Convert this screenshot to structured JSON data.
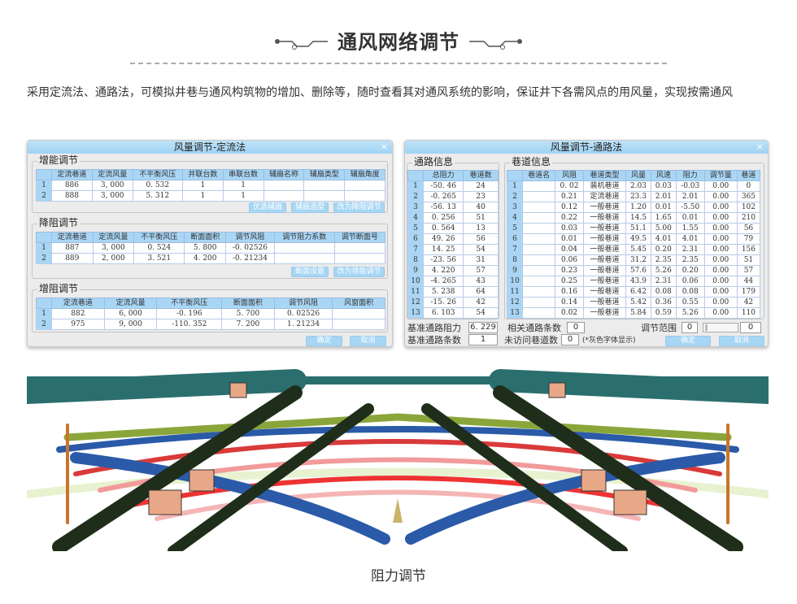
{
  "header": {
    "title": "通风网络调节"
  },
  "intro": "采用定流法、通路法，可模拟井巷与通风构筑物的增加、删除等，随时查看其对通风系统的影响，保证井下各需风点的用风量，实现按需通风",
  "left_dialog": {
    "title": "风量调节-定流法",
    "close": "×",
    "boost": {
      "label": "增能调节",
      "columns": [
        "",
        "定流巷道",
        "定流风量",
        "不平衡风压",
        "并联台数",
        "串联台数",
        "辅扇名称",
        "辅扇类型",
        "辅扇角度"
      ],
      "rows": [
        [
          "1",
          "886",
          "3, 000",
          "0. 532",
          "1",
          "1",
          "",
          "",
          ""
        ],
        [
          "2",
          "888",
          "3, 000",
          "5. 312",
          "1",
          "1",
          "",
          "",
          ""
        ]
      ],
      "buttons": [
        "优选辅扇",
        "辅扇选型",
        "改为降阻调节"
      ]
    },
    "reduce": {
      "label": "降阻调节",
      "columns": [
        "",
        "定流巷道",
        "定流风量",
        "不平衡风压",
        "断面面积",
        "调节风阻",
        "调节阻力系数",
        "调节断面号"
      ],
      "rows": [
        [
          "1",
          "887",
          "3, 000",
          "0. 524",
          "5. 800",
          "-0. 02526",
          "",
          ""
        ],
        [
          "2",
          "889",
          "2, 000",
          "3. 521",
          "4. 200",
          "-0. 21234",
          "",
          ""
        ]
      ],
      "buttons": [
        "断面设置",
        "改为增能调节"
      ]
    },
    "increase": {
      "label": "增阻调节",
      "columns": [
        "",
        "定流巷道",
        "定流风量",
        "不平衡风压",
        "断面面积",
        "调节风阻",
        "风窗面积"
      ],
      "rows": [
        [
          "1",
          "882",
          "6, 000",
          "-0. 196",
          "5. 700",
          "0. 02526",
          ""
        ],
        [
          "2",
          "975",
          "9, 000",
          "-110. 352",
          "7. 200",
          "1. 21234",
          ""
        ]
      ]
    },
    "ok": "确定",
    "cancel": "取消"
  },
  "right_dialog": {
    "title": "风量调节-通路法",
    "close": "×",
    "paths": {
      "label": "通路信息",
      "columns": [
        "",
        "总阻力",
        "巷道数"
      ],
      "rows": [
        [
          "1",
          "-50. 46",
          "24"
        ],
        [
          "2",
          "-0. 265",
          "23"
        ],
        [
          "3",
          "-56. 13",
          "40"
        ],
        [
          "4",
          "0. 256",
          "51"
        ],
        [
          "5",
          "0. 564",
          "13"
        ],
        [
          "6",
          "49. 26",
          "56"
        ],
        [
          "7",
          "14. 25",
          "54"
        ],
        [
          "8",
          "-23. 56",
          "31"
        ],
        [
          "9",
          "4. 220",
          "57"
        ],
        [
          "10",
          "-4. 265",
          "43"
        ],
        [
          "11",
          "5. 238",
          "64"
        ],
        [
          "12",
          "-15. 26",
          "42"
        ],
        [
          "13",
          "6. 103",
          "54"
        ]
      ]
    },
    "roads": {
      "label": "巷道信息",
      "columns": [
        "",
        "巷道名",
        "风阻",
        "巷道类型",
        "风量",
        "风速",
        "阻力",
        "调节量",
        "巷道"
      ],
      "rows": [
        [
          "1",
          "",
          "0. 02",
          "装机巷道",
          "2.03",
          "0.03",
          "-0.03",
          "0.00",
          "0"
        ],
        [
          "2",
          "",
          "0.21",
          "定流巷道",
          "23.3",
          "2.01",
          "2.01",
          "0.00",
          "365"
        ],
        [
          "3",
          "",
          "0.12",
          "一般巷道",
          "1.20",
          "0.01",
          "-5.50",
          "0.00",
          "102"
        ],
        [
          "4",
          "",
          "0.22",
          "一般巷道",
          "14.5",
          "1.65",
          "0.01",
          "0.00",
          "210"
        ],
        [
          "5",
          "",
          "0.03",
          "一般巷道",
          "51.1",
          "5.00",
          "1.55",
          "0.00",
          "56"
        ],
        [
          "6",
          "",
          "0.01",
          "一般巷道",
          "49.5",
          "4.01",
          "4.01",
          "0.00",
          "79"
        ],
        [
          "7",
          "",
          "0.04",
          "一般巷道",
          "5.45",
          "0.20",
          "2.31",
          "0.00",
          "156"
        ],
        [
          "8",
          "",
          "0.06",
          "一般巷道",
          "31.2",
          "2.35",
          "2.35",
          "0.00",
          "51"
        ],
        [
          "9",
          "",
          "0.23",
          "一般巷道",
          "57.6",
          "5.26",
          "0.20",
          "0.00",
          "57"
        ],
        [
          "10",
          "",
          "0.25",
          "一般巷道",
          "43.9",
          "2.31",
          "0.06",
          "0.00",
          "44"
        ],
        [
          "11",
          "",
          "0.16",
          "一般巷道",
          "6.42",
          "0.08",
          "0.08",
          "0.00",
          "179"
        ],
        [
          "12",
          "",
          "0.14",
          "一般巷道",
          "5.42",
          "0.36",
          "0.55",
          "0.00",
          "42"
        ],
        [
          "13",
          "",
          "0.02",
          "一般巷道",
          "5.84",
          "0.59",
          "5.26",
          "0.00",
          "110"
        ]
      ]
    },
    "base_resistance_label": "基准通路阻力",
    "base_resistance": "6. 229",
    "base_count_label": "基准通路条数",
    "base_count": "1",
    "related_label": "相关通路条数",
    "related": "0",
    "range_label": "调节范围",
    "range_min": "0",
    "range_max": "0",
    "unvisited_label": "未访问巷道数",
    "unvisited": "0",
    "unvisited_note": "(*灰色字体显示)",
    "ok": "确定",
    "cancel": "取消"
  },
  "caption": "阻力调节",
  "colors": {
    "accent": "#a6d6f4",
    "header_blue": "#a9d6f5"
  }
}
